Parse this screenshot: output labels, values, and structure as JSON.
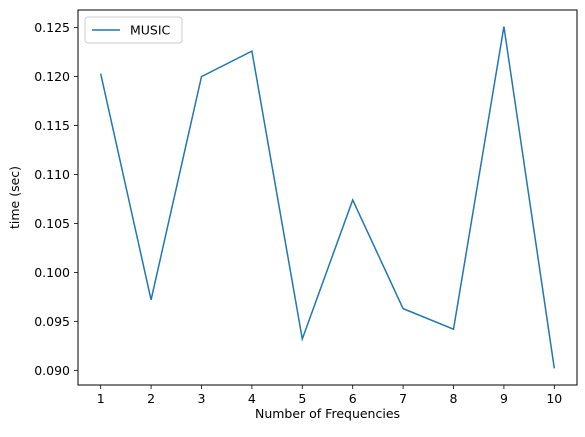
{
  "chart_data": {
    "type": "line",
    "title": "",
    "xlabel": "Number of Frequencies",
    "ylabel": "time (sec)",
    "x": [
      1,
      2,
      3,
      4,
      5,
      6,
      7,
      8,
      9,
      10
    ],
    "xlim": [
      0.55,
      10.45
    ],
    "ylim": [
      0.0885,
      0.1268
    ],
    "xticks": [
      1,
      2,
      3,
      4,
      5,
      6,
      7,
      8,
      9,
      10
    ],
    "xtick_labels": [
      "1",
      "2",
      "3",
      "4",
      "5",
      "6",
      "7",
      "8",
      "9",
      "10"
    ],
    "yticks": [
      0.09,
      0.095,
      0.1,
      0.105,
      0.11,
      0.115,
      0.12,
      0.125
    ],
    "ytick_labels": [
      "0.090",
      "0.095",
      "0.100",
      "0.105",
      "0.110",
      "0.115",
      "0.120",
      "0.125"
    ],
    "grid": false,
    "legend_position": "top-left",
    "series": [
      {
        "name": "MUSIC",
        "color": "#1f77b4",
        "values": [
          0.1203,
          0.0972,
          0.12,
          0.1226,
          0.0932,
          0.1074,
          0.0963,
          0.0942,
          0.1251,
          0.0902
        ]
      }
    ]
  }
}
